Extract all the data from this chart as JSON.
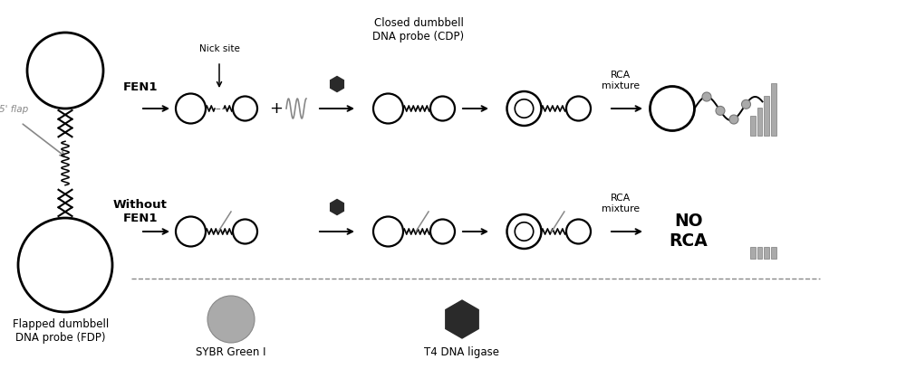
{
  "bg_color": "#ffffff",
  "gray_color": "#888888",
  "light_gray": "#aaaaaa",
  "dark_hex": "#2a2a2a",
  "circle_lw": 1.6,
  "fdp_label": "Flapped dumbbell\nDNA probe (FDP)",
  "cdp_label": "Closed dumbbell\nDNA probe (CDP)",
  "nick_label": "Nick site",
  "fen1_label": "FEN1",
  "without_fen1_label": "Without\nFEN1",
  "rca_label": "RCA\nmixture",
  "no_rca_label": "NO\nRCA",
  "flap_label": "5' flap",
  "sybr_label": "SYBR Green I",
  "t4_label": "T4 DNA ligase"
}
